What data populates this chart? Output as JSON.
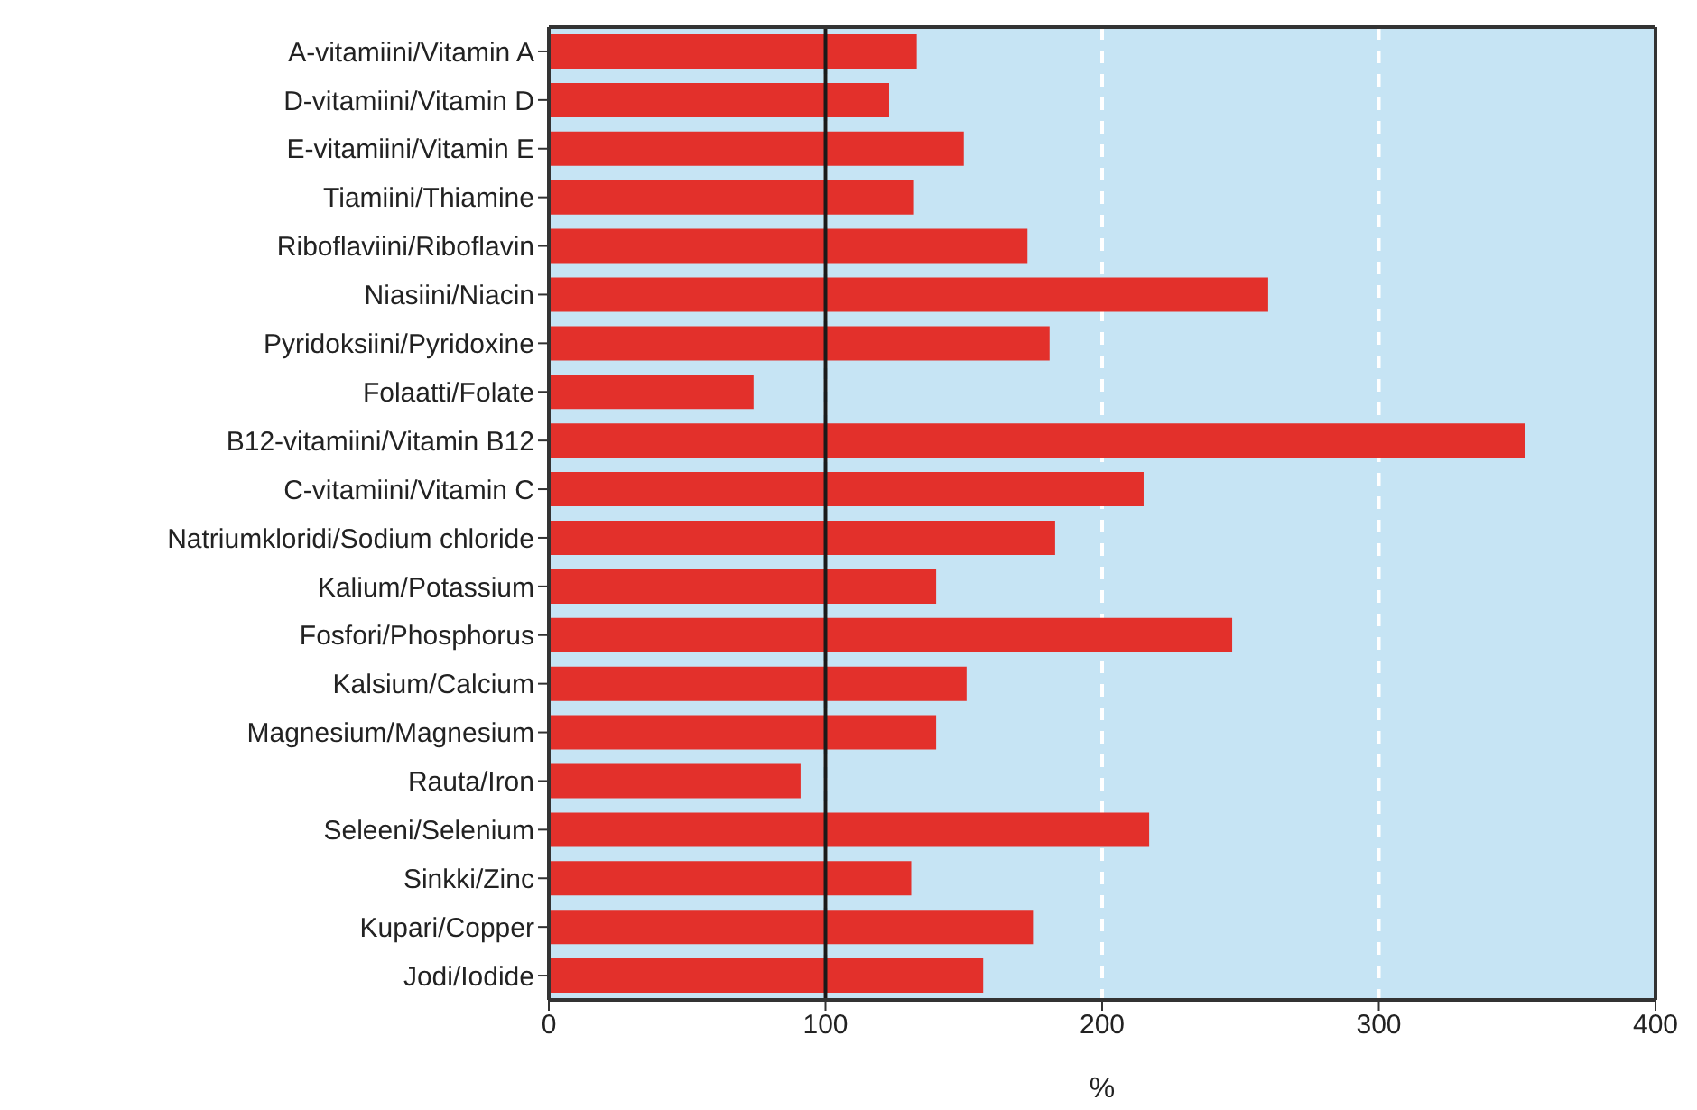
{
  "chart_data": {
    "type": "bar",
    "orientation": "horizontal",
    "xlabel": "%",
    "categories": [
      "A-vitamiini/Vitamin A",
      "D-vitamiini/Vitamin D",
      "E-vitamiini/Vitamin E",
      "Tiamiini/Thiamine",
      "Riboflaviini/Riboflavin",
      "Niasiini/Niacin",
      "Pyridoksiini/Pyridoxine",
      "Folaatti/Folate",
      "B12-vitamiini/Vitamin B12",
      "C-vitamiini/Vitamin C",
      "Natriumkloridi/Sodium chloride",
      "Kalium/Potassium",
      "Fosfori/Phosphorus",
      "Kalsium/Calcium",
      "Magnesium/Magnesium",
      "Rauta/Iron",
      "Seleeni/Selenium",
      "Sinkki/Zinc",
      "Kupari/Copper",
      "Jodi/Iodide"
    ],
    "values": [
      133,
      123,
      150,
      132,
      173,
      260,
      181,
      74,
      353,
      215,
      183,
      140,
      247,
      151,
      140,
      91,
      217,
      131,
      175,
      157
    ],
    "color": "#e3302b",
    "xlim": [
      0,
      400
    ],
    "xticks": [
      0,
      100,
      200,
      300,
      400
    ],
    "grid": "x",
    "ref_lines": [
      {
        "axis": "x",
        "value": 100,
        "color": "#1a1a1a"
      }
    ]
  }
}
